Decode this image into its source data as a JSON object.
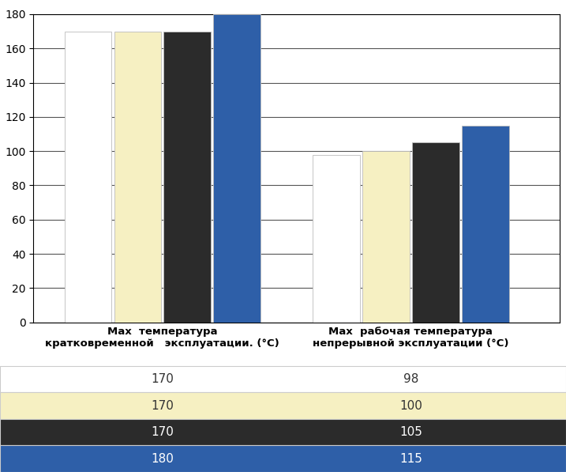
{
  "chart_data": {
    "type": "bar",
    "categories": [
      "Max  температура\nкратковременной   эксплуатации. (°C)",
      "Max  рабочая температура\nнепрерывной эксплуатации (°C)"
    ],
    "series": [
      {
        "color": "#ffffff",
        "values": [
          170,
          98
        ]
      },
      {
        "color": "#f6f0c2",
        "values": [
          170,
          100
        ]
      },
      {
        "color": "#2b2b2b",
        "values": [
          170,
          105
        ]
      },
      {
        "color": "#2e5fa8",
        "values": [
          180,
          115
        ]
      }
    ],
    "ylim": [
      0,
      180
    ],
    "yticks": [
      0,
      20,
      40,
      60,
      80,
      100,
      120,
      140,
      160,
      180
    ],
    "grid": true
  }
}
